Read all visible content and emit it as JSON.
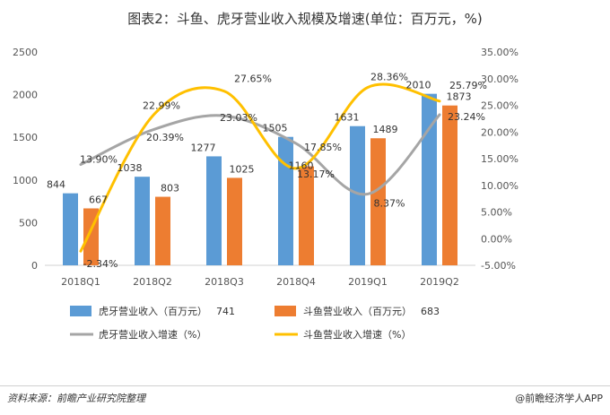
{
  "chart_data": {
    "type": "bar",
    "title": "图表2：斗鱼、虎牙营业收入规模及增速(单位：百万元，%)",
    "categories": [
      "2018Q1",
      "2018Q2",
      "2018Q3",
      "2018Q4",
      "2019Q1",
      "2019Q2"
    ],
    "y_left": {
      "ticks": [
        "0",
        "500",
        "1000",
        "1500",
        "2000",
        "2500"
      ],
      "min": 0,
      "max": 2500
    },
    "y_right": {
      "ticks": [
        "-5.00%",
        "0.00%",
        "5.00%",
        "10.00%",
        "15.00%",
        "20.00%",
        "25.00%",
        "30.00%",
        "35.00%"
      ],
      "min": -5,
      "max": 35
    },
    "series": [
      {
        "name": "虎牙营业收入（百万元）",
        "kind": "bar",
        "axis": "left",
        "color": "#5b9bd5",
        "values": [
          844,
          1038,
          1277,
          1505,
          1631,
          2010
        ],
        "labels": [
          "844",
          "1038",
          "1277",
          "1505",
          "1631",
          "2010"
        ]
      },
      {
        "name": "斗鱼营业收入（百万元）",
        "kind": "bar",
        "axis": "left",
        "color": "#ed7d31",
        "values": [
          667,
          803,
          1025,
          1160,
          1489,
          1873
        ],
        "labels": [
          "667",
          "803",
          "1025",
          "1160",
          "1489",
          "1873"
        ]
      },
      {
        "name": "虎牙营业收入增速（%）",
        "kind": "line",
        "axis": "right",
        "color": "#a5a5a5",
        "values": [
          13.9,
          20.39,
          23.03,
          17.85,
          8.37,
          23.24
        ],
        "labels": [
          "13.90%",
          "20.39%",
          "23.03%",
          "17.85%",
          "8.37%",
          "23.24%"
        ]
      },
      {
        "name": "斗鱼营业收入增速（%）",
        "kind": "line",
        "axis": "right",
        "color": "#ffc000",
        "values": [
          -2.34,
          22.99,
          27.65,
          13.17,
          28.36,
          25.79
        ],
        "labels": [
          "-2.34%",
          "22.99%",
          "27.65%",
          "13.17%",
          "28.36%",
          "25.79%"
        ]
      }
    ],
    "legend": {
      "placement": "bottom",
      "items": [
        {
          "label": "虎牙营业收入（百万元）",
          "extra": "741",
          "swatch": "bar",
          "color": "#5b9bd5"
        },
        {
          "label": "斗鱼营业收入（百万元）",
          "extra": "683",
          "swatch": "bar",
          "color": "#ed7d31"
        },
        {
          "label": "虎牙营业收入增速（%）",
          "swatch": "line",
          "color": "#a5a5a5"
        },
        {
          "label": "斗鱼营业收入增速（%）",
          "swatch": "line",
          "color": "#ffc000"
        }
      ]
    },
    "grid": false
  },
  "footer": {
    "source": "资料来源：前瞻产业研究院整理",
    "brand": "@前瞻经济学人APP"
  }
}
